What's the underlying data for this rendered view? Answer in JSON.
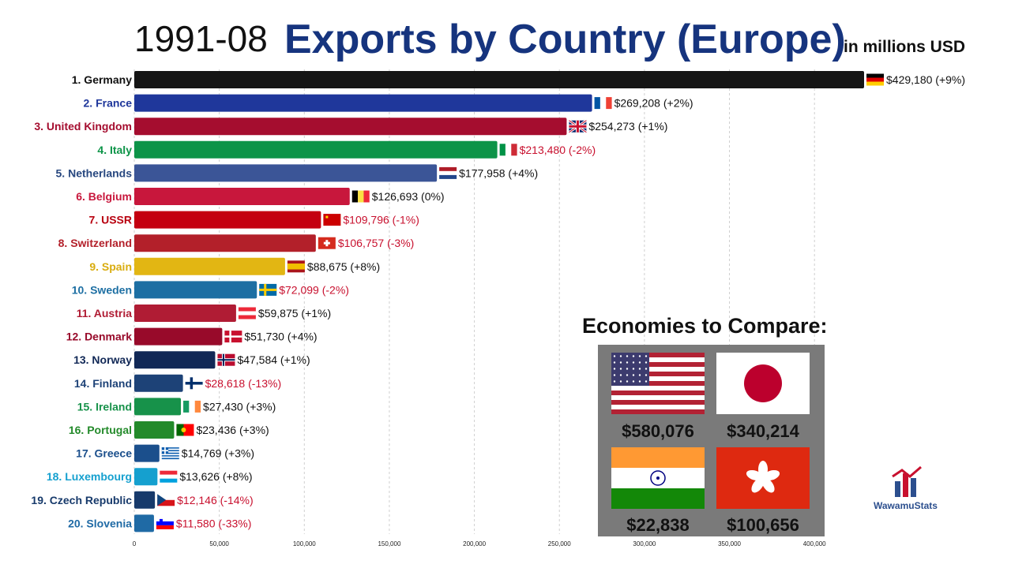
{
  "title": {
    "date": "1991-08",
    "main": "Exports by Country (Europe)",
    "unit": "in millions USD"
  },
  "chart_data": {
    "type": "bar",
    "orientation": "horizontal",
    "title": "Exports by Country (Europe)",
    "xlim": [
      0,
      429180
    ],
    "x_ticks": [
      0,
      50000,
      100000,
      150000,
      200000,
      250000,
      300000,
      350000,
      400000
    ],
    "x_tick_labels": [
      "0",
      "50,000",
      "100,000",
      "150,000",
      "200,000",
      "250,000",
      "300,000",
      "350,000",
      "400,000"
    ],
    "grid": "vertical dashed",
    "bars": [
      {
        "label": "1. Germany",
        "value": 429180,
        "value_label": "$429,180 (+9%)",
        "color": "#151515",
        "label_color": "#111111",
        "value_color": "#111111",
        "flag": "germany"
      },
      {
        "label": "2. France",
        "value": 269208,
        "value_label": "$269,208 (+2%)",
        "color": "#1f379b",
        "label_color": "#1f379b",
        "value_color": "#111111",
        "flag": "france"
      },
      {
        "label": "3. United Kingdom",
        "value": 254273,
        "value_label": "$254,273 (+1%)",
        "color": "#a50d2f",
        "label_color": "#a50d2f",
        "value_color": "#111111",
        "flag": "uk"
      },
      {
        "label": "4. Italy",
        "value": 213480,
        "value_label": "$213,480 (-2%)",
        "color": "#0d9448",
        "label_color": "#0d9448",
        "value_color": "#c8102e",
        "flag": "italy"
      },
      {
        "label": "5. Netherlands",
        "value": 177958,
        "value_label": "$177,958 (+4%)",
        "color": "#3b5597",
        "label_color": "#27477f",
        "value_color": "#111111",
        "flag": "netherlands"
      },
      {
        "label": "6. Belgium",
        "value": 126693,
        "value_label": "$126,693 (0%)",
        "color": "#c8173c",
        "label_color": "#c8173c",
        "value_color": "#111111",
        "flag": "belgium"
      },
      {
        "label": "7. USSR",
        "value": 109796,
        "value_label": "$109,796 (-1%)",
        "color": "#c40010",
        "label_color": "#b8000f",
        "value_color": "#c8102e",
        "flag": "ussr"
      },
      {
        "label": "8. Switzerland",
        "value": 106757,
        "value_label": "$106,757 (-3%)",
        "color": "#b3202a",
        "label_color": "#b3202a",
        "value_color": "#c8102e",
        "flag": "switzerland"
      },
      {
        "label": "9. Spain",
        "value": 88675,
        "value_label": "$88,675 (+8%)",
        "color": "#e2b613",
        "label_color": "#d9ac0e",
        "value_color": "#111111",
        "flag": "spain"
      },
      {
        "label": "10. Sweden",
        "value": 72099,
        "value_label": "$72,099 (-2%)",
        "color": "#1d6fa3",
        "label_color": "#1d6fa3",
        "value_color": "#c8102e",
        "flag": "sweden"
      },
      {
        "label": "11. Austria",
        "value": 59875,
        "value_label": "$59,875 (+1%)",
        "color": "#b01c34",
        "label_color": "#b01c34",
        "value_color": "#111111",
        "flag": "austria"
      },
      {
        "label": "12. Denmark",
        "value": 51730,
        "value_label": "$51,730 (+4%)",
        "color": "#980a2a",
        "label_color": "#980a2a",
        "value_color": "#111111",
        "flag": "denmark"
      },
      {
        "label": "13. Norway",
        "value": 47584,
        "value_label": "$47,584 (+1%)",
        "color": "#112856",
        "label_color": "#112856",
        "value_color": "#111111",
        "flag": "norway"
      },
      {
        "label": "14. Finland",
        "value": 28618,
        "value_label": "$28,618 (-13%)",
        "color": "#1d4277",
        "label_color": "#1d4277",
        "value_color": "#c8102e",
        "flag": "finland"
      },
      {
        "label": "15. Ireland",
        "value": 27430,
        "value_label": "$27,430 (+3%)",
        "color": "#17924a",
        "label_color": "#17924a",
        "value_color": "#111111",
        "flag": "ireland"
      },
      {
        "label": "16. Portugal",
        "value": 23436,
        "value_label": "$23,436 (+3%)",
        "color": "#238a2a",
        "label_color": "#238a2a",
        "value_color": "#111111",
        "flag": "portugal"
      },
      {
        "label": "17. Greece",
        "value": 14769,
        "value_label": "$14,769 (+3%)",
        "color": "#1b4f8c",
        "label_color": "#1b4f8c",
        "value_color": "#111111",
        "flag": "greece"
      },
      {
        "label": "18. Luxembourg",
        "value": 13626,
        "value_label": "$13,626 (+8%)",
        "color": "#15a0cf",
        "label_color": "#15a0cf",
        "value_color": "#111111",
        "flag": "luxembourg"
      },
      {
        "label": "19. Czech Republic",
        "value": 12146,
        "value_label": "$12,146 (-14%)",
        "color": "#173a6b",
        "label_color": "#173a6b",
        "value_color": "#c8102e",
        "flag": "czech"
      },
      {
        "label": "20. Slovenia",
        "value": 11580,
        "value_label": "$11,580 (-33%)",
        "color": "#1f6aa5",
        "label_color": "#1f6aa5",
        "value_color": "#c8102e",
        "flag": "slovenia"
      }
    ]
  },
  "compare": {
    "title": "Economies to Compare:",
    "items": [
      {
        "flag": "usa",
        "value": "$580,076"
      },
      {
        "flag": "japan",
        "value": "$340,214"
      },
      {
        "flag": "india",
        "value": "$22,838"
      },
      {
        "flag": "hongkong",
        "value": "$100,656"
      }
    ]
  },
  "logo": {
    "text": "WawamuStats"
  }
}
